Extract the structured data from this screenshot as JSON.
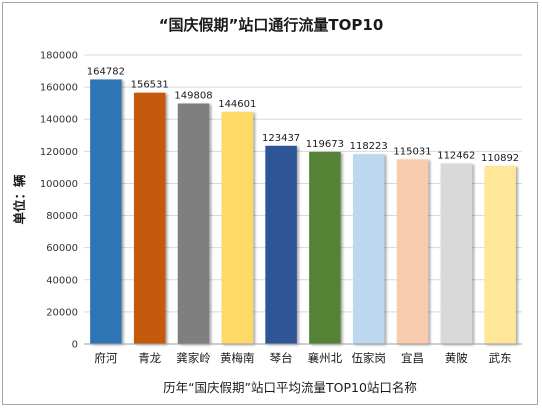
{
  "chart_data": {
    "type": "bar",
    "title": "“国庆假期”站口通行流量TOP10",
    "xlabel": "历年“国庆假期”站口平均流量TOP10站口名称",
    "ylabel": "单位：辆",
    "categories": [
      "府河",
      "青龙",
      "龚家岭",
      "黄梅南",
      "琴台",
      "襄州北",
      "伍家岗",
      "宜昌",
      "黄陂",
      "武东"
    ],
    "values": [
      164782,
      156531,
      149808,
      144601,
      123437,
      119673,
      118223,
      115031,
      112462,
      110892
    ],
    "value_labels": [
      "164782",
      "156531",
      "149808",
      "144601",
      "123437",
      "119673",
      "118223",
      "115031",
      "112462",
      "110892"
    ],
    "colors": [
      "#2e75b6",
      "#c55a11",
      "#7f7f7f",
      "#ffd966",
      "#2f5597",
      "#548235",
      "#bdd7ee",
      "#f8cbad",
      "#d9d9d9",
      "#ffe699"
    ],
    "ylim": [
      0,
      180000
    ],
    "yticks": [
      "0",
      "20000",
      "40000",
      "60000",
      "80000",
      "100000",
      "120000",
      "140000",
      "160000",
      "180000"
    ],
    "grid": true,
    "legend": "none"
  }
}
